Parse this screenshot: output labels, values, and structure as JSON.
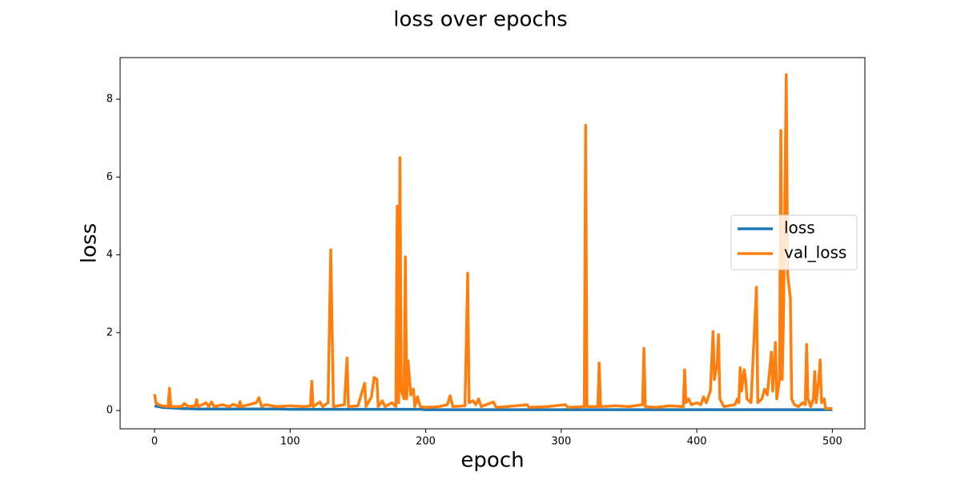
{
  "chart_data": {
    "type": "line",
    "title": "loss over epochs",
    "x_label": "epoch",
    "y_label": "loss",
    "x": [
      0,
      1,
      3,
      6,
      10,
      11,
      12,
      20,
      22,
      25,
      30,
      31,
      32,
      38,
      40,
      42,
      44,
      50,
      55,
      58,
      62,
      63,
      64,
      75,
      77,
      79,
      82,
      90,
      100,
      110,
      115,
      116,
      117,
      122,
      124,
      128,
      130,
      131,
      132,
      140,
      142,
      143,
      150,
      155,
      156,
      160,
      162,
      164,
      165,
      168,
      170,
      175,
      178,
      179,
      180,
      181,
      182,
      184,
      185,
      186,
      187,
      189,
      191,
      192,
      194,
      196,
      200,
      210,
      216,
      218,
      220,
      229,
      231,
      232,
      235,
      237,
      239,
      241,
      250,
      252,
      260,
      275,
      276,
      290,
      303,
      305,
      317,
      318,
      319,
      327,
      328,
      329,
      340,
      350,
      360,
      361,
      362,
      370,
      380,
      390,
      391,
      392,
      394,
      396,
      400,
      403,
      405,
      407,
      410,
      412,
      413,
      415,
      416,
      417,
      420,
      428,
      430,
      431,
      432,
      433,
      435,
      436,
      437,
      440,
      444,
      445,
      448,
      450,
      452,
      455,
      456,
      458,
      459,
      461,
      462,
      463,
      464,
      466,
      467,
      469,
      470,
      472,
      475,
      478,
      480,
      481,
      482,
      484,
      486,
      487,
      488,
      490,
      491,
      492,
      494,
      495,
      500
    ],
    "series": [
      {
        "name": "loss",
        "color": "#1f77b4",
        "values": [
          0.12,
          0.11,
          0.1,
          0.08,
          0.07,
          0.07,
          0.07,
          0.05,
          0.05,
          0.05,
          0.04,
          0.04,
          0.04,
          0.04,
          0.04,
          0.04,
          0.04,
          0.04,
          0.04,
          0.04,
          0.04,
          0.04,
          0.04,
          0.04,
          0.04,
          0.04,
          0.04,
          0.04,
          0.03,
          0.03,
          0.03,
          0.03,
          0.03,
          0.03,
          0.03,
          0.03,
          0.03,
          0.03,
          0.03,
          0.03,
          0.03,
          0.03,
          0.03,
          0.03,
          0.03,
          0.03,
          0.03,
          0.03,
          0.03,
          0.03,
          0.03,
          0.03,
          0.03,
          0.03,
          0.03,
          0.03,
          0.03,
          0.03,
          0.03,
          0.03,
          0.03,
          0.03,
          0.03,
          0.03,
          0.03,
          0.03,
          0.02,
          0.02,
          0.02,
          0.02,
          0.02,
          0.02,
          0.02,
          0.02,
          0.02,
          0.02,
          0.02,
          0.02,
          0.02,
          0.02,
          0.02,
          0.02,
          0.02,
          0.02,
          0.02,
          0.02,
          0.02,
          0.02,
          0.02,
          0.02,
          0.02,
          0.02,
          0.02,
          0.02,
          0.02,
          0.02,
          0.02,
          0.02,
          0.02,
          0.02,
          0.02,
          0.02,
          0.02,
          0.02,
          0.02,
          0.02,
          0.02,
          0.02,
          0.02,
          0.02,
          0.02,
          0.02,
          0.02,
          0.02,
          0.02,
          0.02,
          0.02,
          0.02,
          0.02,
          0.02,
          0.02,
          0.02,
          0.02,
          0.02,
          0.02,
          0.02,
          0.02,
          0.02,
          0.02,
          0.02,
          0.02,
          0.02,
          0.02,
          0.02,
          0.02,
          0.02,
          0.02,
          0.02,
          0.02,
          0.02,
          0.02,
          0.02,
          0.02,
          0.02,
          0.02,
          0.02,
          0.02,
          0.02,
          0.02,
          0.02,
          0.02,
          0.02,
          0.02,
          0.02,
          0.02,
          0.02,
          0.02
        ]
      },
      {
        "name": "val_loss",
        "color": "#ff7f0e",
        "values": [
          0.42,
          0.2,
          0.15,
          0.12,
          0.1,
          0.57,
          0.1,
          0.1,
          0.18,
          0.1,
          0.12,
          0.28,
          0.1,
          0.2,
          0.1,
          0.22,
          0.1,
          0.15,
          0.1,
          0.16,
          0.1,
          0.23,
          0.1,
          0.2,
          0.33,
          0.1,
          0.15,
          0.1,
          0.12,
          0.1,
          0.12,
          0.75,
          0.1,
          0.22,
          0.1,
          0.2,
          4.13,
          2.0,
          0.1,
          0.15,
          1.35,
          0.1,
          0.12,
          0.7,
          0.1,
          0.35,
          0.85,
          0.8,
          0.1,
          0.25,
          0.1,
          0.2,
          0.1,
          5.25,
          0.2,
          6.5,
          0.5,
          0.3,
          3.95,
          0.3,
          1.28,
          0.4,
          0.55,
          0.1,
          0.35,
          0.1,
          0.08,
          0.1,
          0.15,
          0.38,
          0.1,
          0.12,
          3.53,
          0.2,
          0.25,
          0.15,
          0.3,
          0.1,
          0.22,
          0.08,
          0.1,
          0.15,
          0.08,
          0.1,
          0.15,
          0.08,
          0.1,
          7.33,
          0.1,
          0.1,
          1.22,
          0.1,
          0.12,
          0.1,
          0.15,
          1.6,
          0.1,
          0.08,
          0.12,
          0.1,
          1.05,
          0.2,
          0.3,
          0.15,
          0.2,
          0.15,
          0.35,
          0.2,
          0.5,
          2.03,
          0.8,
          1.2,
          1.95,
          0.3,
          0.1,
          0.15,
          0.3,
          0.2,
          1.1,
          0.5,
          1.05,
          0.8,
          0.3,
          0.2,
          3.17,
          0.2,
          0.3,
          0.55,
          0.4,
          1.5,
          0.5,
          1.75,
          0.3,
          0.8,
          7.2,
          0.8,
          2.5,
          8.63,
          3.5,
          2.9,
          0.3,
          0.15,
          0.1,
          0.2,
          0.15,
          1.7,
          0.3,
          0.1,
          0.3,
          1.0,
          0.2,
          0.8,
          1.3,
          0.2,
          0.3,
          0.05,
          0.05
        ]
      }
    ],
    "xlim": [
      -25.4,
      524
    ],
    "ylim": [
      -0.47,
      9.07
    ],
    "xticks": [
      0,
      100,
      200,
      300,
      400,
      500
    ],
    "yticks": [
      0,
      2,
      4,
      6,
      8
    ],
    "grid": false,
    "legend": "center right"
  }
}
